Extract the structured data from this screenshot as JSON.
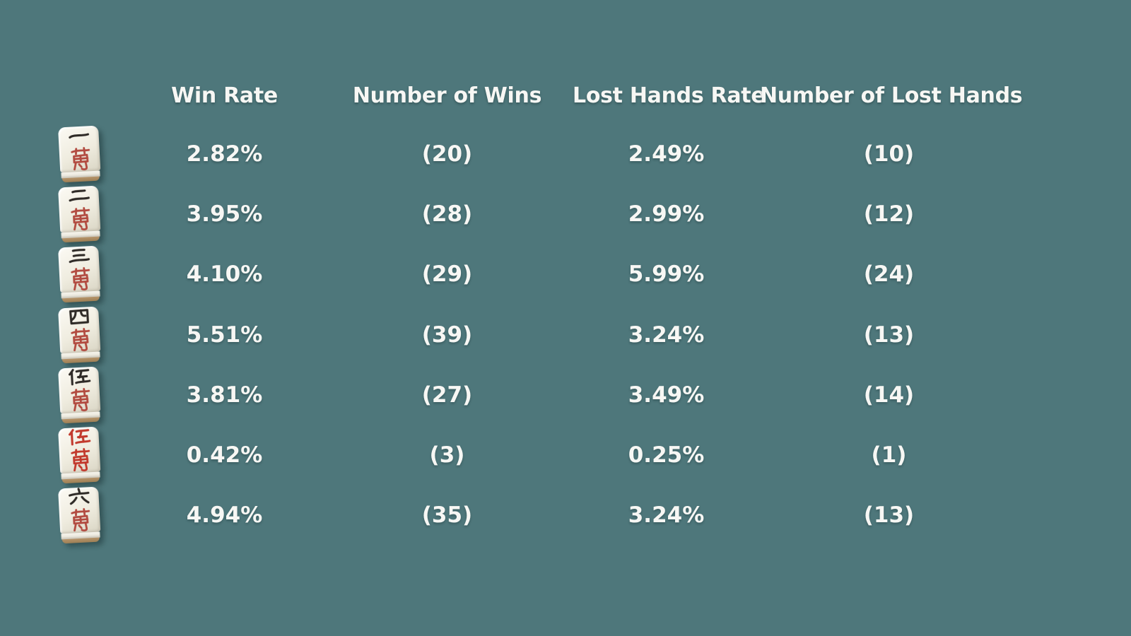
{
  "colors": {
    "background": "#4e777b",
    "text": "#f7f7f4",
    "tile_face": "#efecdf",
    "tile_foot": "#a9895e",
    "glyph_black": "#2e2a26",
    "glyph_red": "#b24b40",
    "glyph_red_five": "#c2392c"
  },
  "table": {
    "columns": [
      {
        "id": "win_rate",
        "label": "Win Rate"
      },
      {
        "id": "wins",
        "label": "Number of Wins"
      },
      {
        "id": "lost_rate",
        "label": "Lost Hands Rate"
      },
      {
        "id": "lost",
        "label": "Number of Lost Hands"
      }
    ],
    "rows": [
      {
        "tile": "1-man",
        "tile_label": "一萬",
        "win_rate": "2.82%",
        "wins": "(20)",
        "lost_rate": "2.49%",
        "lost": "(10)"
      },
      {
        "tile": "2-man",
        "tile_label": "二萬",
        "win_rate": "3.95%",
        "wins": "(28)",
        "lost_rate": "2.99%",
        "lost": "(12)"
      },
      {
        "tile": "3-man",
        "tile_label": "三萬",
        "win_rate": "4.10%",
        "wins": "(29)",
        "lost_rate": "5.99%",
        "lost": "(24)"
      },
      {
        "tile": "4-man",
        "tile_label": "四萬",
        "win_rate": "5.51%",
        "wins": "(39)",
        "lost_rate": "3.24%",
        "lost": "(13)"
      },
      {
        "tile": "5-man",
        "tile_label": "伍萬",
        "win_rate": "3.81%",
        "wins": "(27)",
        "lost_rate": "3.49%",
        "lost": "(14)"
      },
      {
        "tile": "red-5-man",
        "tile_label": "赤伍萬",
        "win_rate": "0.42%",
        "wins": "(3)",
        "lost_rate": "0.25%",
        "lost": "(1)"
      },
      {
        "tile": "6-man",
        "tile_label": "六萬",
        "win_rate": "4.94%",
        "wins": "(35)",
        "lost_rate": "3.24%",
        "lost": "(13)"
      }
    ]
  }
}
